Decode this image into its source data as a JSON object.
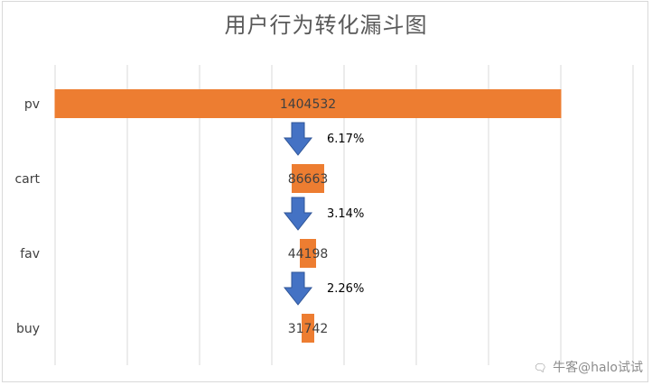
{
  "chart_data": {
    "type": "bar",
    "title": "用户行为转化漏斗图",
    "categories": [
      "pv",
      "cart",
      "fav",
      "buy"
    ],
    "values": [
      1404532,
      86663,
      44198,
      31742
    ],
    "value_labels": [
      "1404532",
      "86663",
      "44198",
      "31742"
    ],
    "conversion_labels": [
      "6.17%",
      "3.14%",
      "2.26%"
    ],
    "xlim": [
      -700000,
      700000
    ],
    "grid": true,
    "bar_color": "#ED7D31",
    "arrow_color": "#4472C4"
  },
  "watermark": {
    "icon": "wechat-icon",
    "text": "牛客@halo试试"
  }
}
